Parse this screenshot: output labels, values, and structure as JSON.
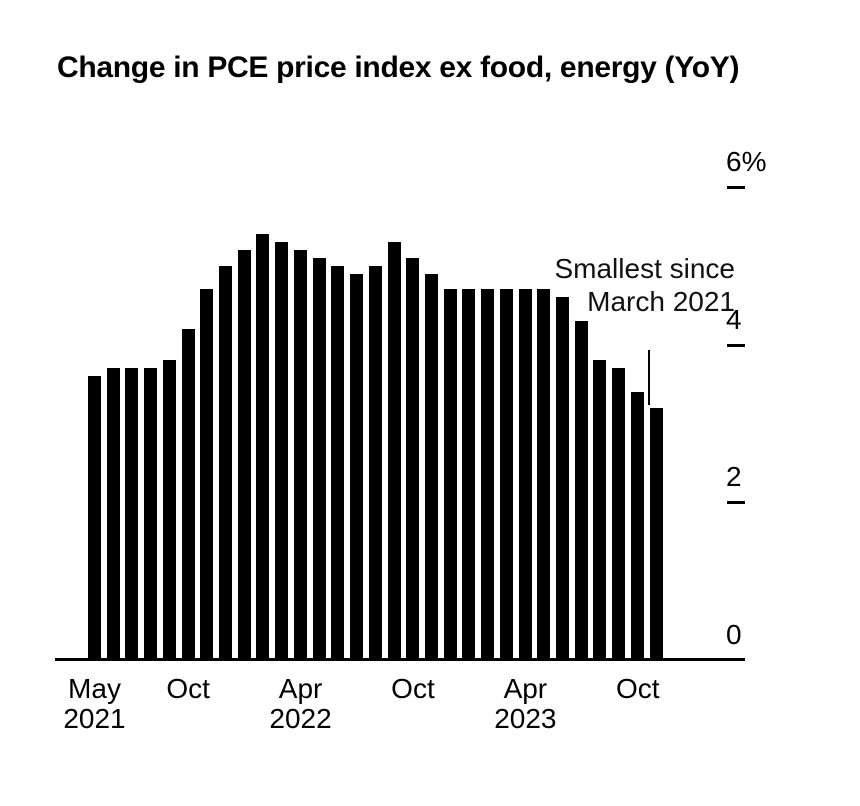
{
  "chart": {
    "title": "Change in PCE price index ex food, energy (YoY)",
    "annotation": {
      "line1": "Smallest since",
      "line2": "March 2021"
    },
    "y_axis": {
      "labels": [
        {
          "value": 6,
          "text": "6%"
        },
        {
          "value": 4,
          "text": "4"
        },
        {
          "value": 2,
          "text": "2"
        },
        {
          "value": 0,
          "text": "0"
        }
      ]
    },
    "x_axis": {
      "ticks": [
        {
          "month": "May",
          "year": "2021",
          "index": 0
        },
        {
          "month": "Oct",
          "year": "",
          "index": 5
        },
        {
          "month": "Apr",
          "year": "2022",
          "index": 11
        },
        {
          "month": "Oct",
          "year": "",
          "index": 17
        },
        {
          "month": "Apr",
          "year": "2023",
          "index": 23
        },
        {
          "month": "Oct",
          "year": "",
          "index": 29
        }
      ]
    },
    "bar_color": "#000000",
    "background_color": "#ffffff"
  },
  "chart_data": {
    "type": "bar",
    "title": "Change in PCE price index ex food, energy (YoY)",
    "unit": "%",
    "ylim": [
      0,
      6
    ],
    "y_ticks": [
      0,
      2,
      4,
      6
    ],
    "grid": false,
    "legend": false,
    "y_axis_position": "right",
    "categories": [
      "May 2021",
      "Jun 2021",
      "Jul 2021",
      "Aug 2021",
      "Sep 2021",
      "Oct 2021",
      "Nov 2021",
      "Dec 2021",
      "Jan 2022",
      "Feb 2022",
      "Mar 2022",
      "Apr 2022",
      "May 2022",
      "Jun 2022",
      "Jul 2022",
      "Aug 2022",
      "Sep 2022",
      "Oct 2022",
      "Nov 2022",
      "Dec 2022",
      "Jan 2023",
      "Feb 2023",
      "Mar 2023",
      "Apr 2023",
      "May 2023",
      "Jun 2023",
      "Jul 2023",
      "Aug 2023",
      "Sep 2023",
      "Oct 2023",
      "Nov 2023"
    ],
    "values": [
      3.6,
      3.7,
      3.7,
      3.7,
      3.8,
      4.2,
      4.7,
      5.0,
      5.2,
      5.4,
      5.3,
      5.2,
      5.1,
      5.0,
      4.9,
      5.0,
      5.3,
      5.1,
      4.9,
      4.7,
      4.7,
      4.7,
      4.7,
      4.7,
      4.7,
      4.6,
      4.3,
      3.8,
      3.7,
      3.4,
      3.2
    ],
    "annotation": {
      "text": "Smallest since March 2021",
      "target_category": "Nov 2023",
      "target_index": 30
    }
  }
}
